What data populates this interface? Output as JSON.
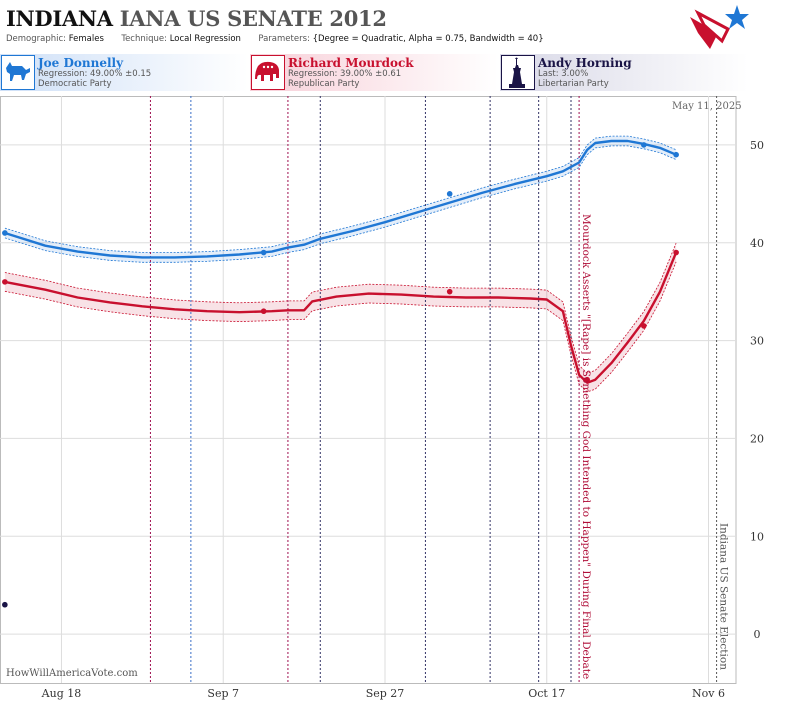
{
  "header": {
    "state": "INDIANA",
    "title_rest": "IANA US SENATE 2012",
    "demographic_key": "Demographic:",
    "demographic_value": "Females",
    "technique_key": "Technique:",
    "technique_value": "Local Regression",
    "parameters_key": "Parameters:",
    "parameters_value": "{Degree = Quadratic, Alpha = 0.75, Bandwidth = 40}"
  },
  "candidates": [
    {
      "name": "Joe Donnelly",
      "line1": "Regression: 49.00% ±0.15",
      "line2": "Democratic Party",
      "color": "#1f77d4",
      "icon": "donkey-icon"
    },
    {
      "name": "Richard Mourdock",
      "line1": "Regression: 39.00% ±0.61",
      "line2": "Republican Party",
      "color": "#c8102e",
      "icon": "elephant-icon"
    },
    {
      "name": "Andy Horning",
      "line1": "Last: 3.00%",
      "line2": "Libertarian Party",
      "color": "#1a1446",
      "icon": "liberty-statue-icon"
    }
  ],
  "watermark": "HowWillAmericaVote.com",
  "datestamp": "May 11, 2025",
  "chart_data": {
    "type": "line",
    "title": "",
    "xlabel": "",
    "ylabel": "",
    "x_ticks": [
      {
        "label": "Aug 18",
        "day": 0
      },
      {
        "label": "Sep 7",
        "day": 20
      },
      {
        "label": "Sep 27",
        "day": 40
      },
      {
        "label": "Oct 17",
        "day": 60
      },
      {
        "label": "Nov 6",
        "day": 80
      }
    ],
    "xlim": [
      -7.6,
      83.4
    ],
    "ylim": [
      -5,
      55
    ],
    "y_ticks": [
      0,
      10,
      20,
      30,
      40,
      50
    ],
    "grid": true,
    "series": [
      {
        "name": "Joe Donnelly",
        "color": "#1f77d4",
        "curve": [
          [
            -7,
            41.0
          ],
          [
            -2,
            39.7
          ],
          [
            2,
            39.1
          ],
          [
            6,
            38.7
          ],
          [
            10,
            38.5
          ],
          [
            14,
            38.5
          ],
          [
            18,
            38.6
          ],
          [
            22,
            38.8
          ],
          [
            26,
            39.1
          ],
          [
            28,
            39.5
          ],
          [
            30,
            39.8
          ],
          [
            32,
            40.4
          ],
          [
            36,
            41.2
          ],
          [
            40,
            42.1
          ],
          [
            44,
            43.1
          ],
          [
            48,
            44.1
          ],
          [
            52,
            45.1
          ],
          [
            56,
            46.0
          ],
          [
            60,
            46.8
          ],
          [
            62,
            47.3
          ],
          [
            64,
            48.2
          ],
          [
            65,
            49.5
          ],
          [
            66,
            50.2
          ],
          [
            68,
            50.4
          ],
          [
            70,
            50.4
          ],
          [
            72,
            50.1
          ],
          [
            74,
            49.7
          ],
          [
            76,
            49.0
          ]
        ],
        "band": 0.15,
        "points": [
          [
            -7,
            41
          ],
          [
            25,
            39
          ],
          [
            48,
            45
          ],
          [
            72,
            50
          ],
          [
            76,
            49
          ]
        ]
      },
      {
        "name": "Richard Mourdock",
        "color": "#c8102e",
        "curve": [
          [
            -7,
            36.0
          ],
          [
            -2,
            35.2
          ],
          [
            2,
            34.4
          ],
          [
            6,
            33.9
          ],
          [
            10,
            33.5
          ],
          [
            14,
            33.2
          ],
          [
            18,
            33.0
          ],
          [
            22,
            32.9
          ],
          [
            26,
            33.0
          ],
          [
            28,
            33.1
          ],
          [
            30,
            33.1
          ],
          [
            31,
            34.0
          ],
          [
            34,
            34.5
          ],
          [
            38,
            34.8
          ],
          [
            42,
            34.7
          ],
          [
            46,
            34.5
          ],
          [
            50,
            34.4
          ],
          [
            54,
            34.4
          ],
          [
            58,
            34.3
          ],
          [
            60,
            34.2
          ],
          [
            62,
            33.0
          ],
          [
            63,
            29.5
          ],
          [
            64,
            26.5
          ],
          [
            65,
            25.7
          ],
          [
            66,
            26.0
          ],
          [
            68,
            27.7
          ],
          [
            70,
            29.8
          ],
          [
            72,
            32.0
          ],
          [
            74,
            35.0
          ],
          [
            76,
            39.0
          ]
        ],
        "band": 0.61,
        "points": [
          [
            -7,
            36
          ],
          [
            25,
            33
          ],
          [
            48,
            35
          ],
          [
            65,
            26
          ],
          [
            72,
            31.5
          ],
          [
            76,
            39
          ]
        ]
      },
      {
        "name": "Andy Horning",
        "color": "#1a1446",
        "points": [
          [
            -7,
            3
          ]
        ]
      }
    ],
    "vlines": [
      {
        "day": 11,
        "color": "#a01050",
        "style": "dashed"
      },
      {
        "day": 16,
        "color": "#3a6fc8",
        "style": "dashed"
      },
      {
        "day": 28,
        "color": "#a01050",
        "style": "dashed"
      },
      {
        "day": 32,
        "color": "#333366",
        "style": "dashed"
      },
      {
        "day": 45,
        "color": "#333366",
        "style": "dashed"
      },
      {
        "day": 53,
        "color": "#333366",
        "style": "dashed"
      },
      {
        "day": 59,
        "color": "#333366",
        "style": "dashed"
      },
      {
        "day": 63,
        "color": "#333366",
        "style": "dashed"
      },
      {
        "day": 64,
        "color": "#a01050",
        "style": "dashed"
      },
      {
        "day": 81,
        "color": "#555555",
        "style": "dashed"
      }
    ],
    "annotations": [
      {
        "text": "Mourdock Asserts \"[Rape] is Something God Intended to Happen\" During Final Debate",
        "day": 64,
        "color": "#b0103a"
      },
      {
        "text": "Indiana US Senate Election",
        "day": 81,
        "color": "#555555"
      }
    ]
  }
}
